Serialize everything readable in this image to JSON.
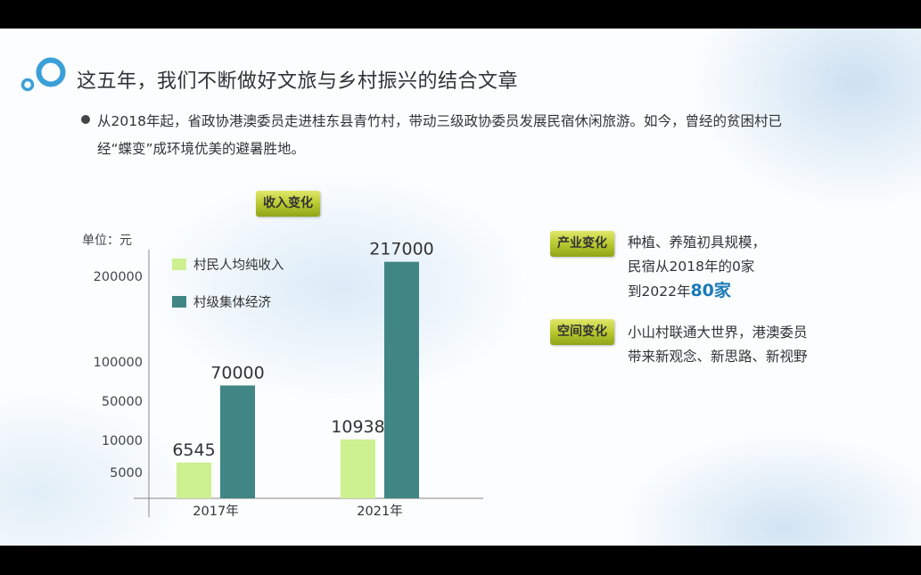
{
  "slide": {
    "title": "这五年，我们不断做好文旅与乡村振兴的结合文章",
    "intro": "从2018年起，省政协港澳委员走进桂东县青竹村，带动三级政协委员发展民宿休闲旅游。如今，曾经的贫困村已经“蝶变”成环境优美的避暑胜地。",
    "chart_tag": "收入变化",
    "changes": [
      {
        "tag": "产业变化",
        "line1": "种植、养殖初具规模，",
        "line2": "民宿从2018年的0家",
        "line3_prefix": "到2022年",
        "line3_highlight": "80家"
      },
      {
        "tag": "空间变化",
        "text": "小山村联通大世界，港澳委员带来新观念、新思路、新视野"
      }
    ],
    "colors": {
      "light_green": "#cdf090",
      "teal": "#3f8684",
      "highlight": "#1a7ab8"
    }
  },
  "chart_data": {
    "type": "bar",
    "ylabel": "单位：元",
    "categories": [
      "2017年",
      "2021年"
    ],
    "series": [
      {
        "name": "村民人均纯收入",
        "values": [
          6545,
          10938
        ],
        "color": "#cdf090"
      },
      {
        "name": "村级集体经济",
        "values": [
          70000,
          217000
        ],
        "color": "#3f8684"
      }
    ],
    "yticks": [
      5000,
      10000,
      50000,
      100000,
      200000
    ],
    "axis_scale": "non-linear",
    "legend": "top-left",
    "grid": false
  }
}
